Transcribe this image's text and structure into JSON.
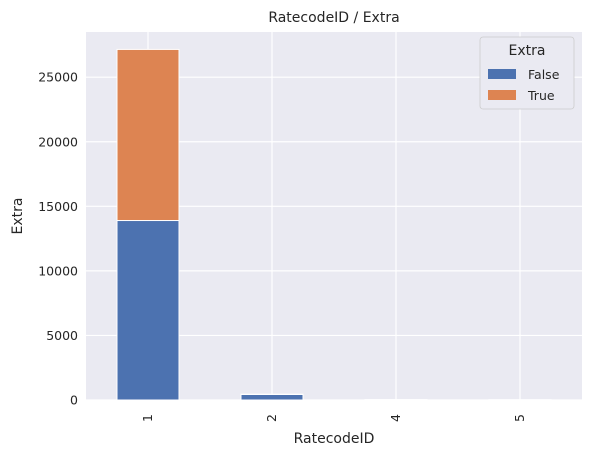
{
  "chart_data": {
    "type": "bar",
    "stacked": true,
    "title": "RatecodeID / Extra",
    "xlabel": "RatecodeID",
    "ylabel": "Extra",
    "categories": [
      "1",
      "2",
      "4",
      "5"
    ],
    "series": [
      {
        "name": "False",
        "values": [
          13900,
          430,
          25,
          15
        ],
        "color": "#4c72b0"
      },
      {
        "name": "True",
        "values": [
          13250,
          20,
          5,
          5
        ],
        "color": "#dd8452"
      }
    ],
    "ylim": [
      0,
      28500
    ],
    "yticks": [
      0,
      5000,
      10000,
      15000,
      20000,
      25000
    ],
    "grid": true,
    "legend": {
      "title": "Extra",
      "placement": "top-right"
    },
    "plot_background": "#eaeaf2",
    "grid_color": "#ffffff"
  }
}
